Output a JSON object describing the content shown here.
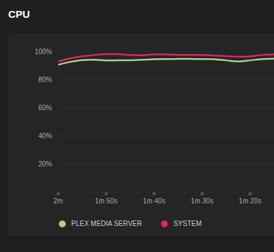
{
  "chart_data": {
    "type": "line",
    "title": "CPU",
    "categories": [
      "2m",
      null,
      null,
      null,
      "1m 50s",
      null,
      null,
      null,
      "1m 40s",
      null,
      null,
      null,
      "1m 30s",
      null,
      null,
      null,
      "1m 20s",
      null,
      null
    ],
    "series": [
      {
        "name": "PLEX MEDIA SERVER",
        "color": "#a6d785",
        "values": [
          90.5,
          92.5,
          93.8,
          94,
          93.5,
          93.6,
          93.7,
          94,
          94.4,
          94.5,
          94.6,
          94.6,
          94.5,
          94.4,
          93.6,
          92.8,
          93.6,
          94.5,
          94.8
        ]
      },
      {
        "name": "SYSTEM",
        "color": "#e5245f",
        "values": [
          92.8,
          95,
          96.5,
          97.5,
          98,
          98,
          97.4,
          97.2,
          97.8,
          97.8,
          97.5,
          97.5,
          97.4,
          97,
          96.6,
          96.2,
          96.4,
          97.4,
          97.8
        ]
      }
    ],
    "ylim": [
      0,
      100
    ],
    "yticks": [
      {
        "value": 20,
        "label": "20%"
      },
      {
        "value": 40,
        "label": "40%"
      },
      {
        "value": 60,
        "label": "60%"
      },
      {
        "value": 80,
        "label": "80%"
      },
      {
        "value": 100,
        "label": "100%"
      }
    ],
    "grid": true
  }
}
